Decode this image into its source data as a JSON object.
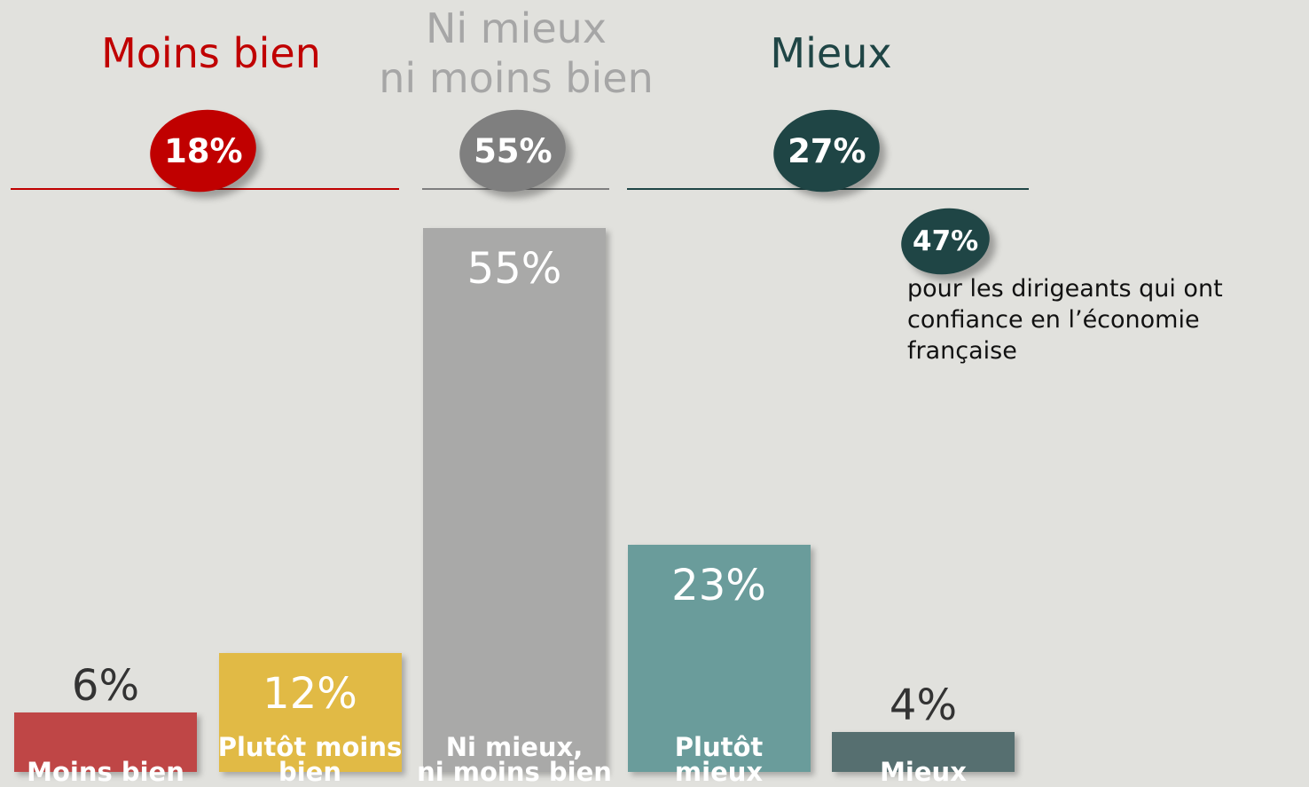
{
  "chart_data": {
    "type": "bar",
    "categories": [
      "Moins bien",
      "Plutôt moins\nbien",
      "Ni mieux,\nni moins bien",
      "Plutôt\nmieux",
      "Mieux"
    ],
    "values": [
      6,
      12,
      55,
      23,
      4
    ],
    "value_labels": [
      "6%",
      "12%",
      "55%",
      "23%",
      "4%"
    ],
    "colors": [
      "#bf4646",
      "#e1ba45",
      "#a9a9a8",
      "#6a9c9b",
      "#566f70"
    ],
    "groups": [
      {
        "title": "Moins bien",
        "value": 18,
        "value_label": "18%",
        "color": "#c00000",
        "title_color": "#c00000"
      },
      {
        "title": "Ni mieux\nni moins bien",
        "value": 55,
        "value_label": "55%",
        "color": "#7f7f7f",
        "title_color": "#a6a6a6"
      },
      {
        "title": "Mieux",
        "value": 27,
        "value_label": "27%",
        "color": "#1f4545",
        "title_color": "#1f4545"
      }
    ],
    "annotation": {
      "value": 47,
      "value_label": "47%",
      "text": "pour les dirigeants qui ont\nconfiance en l’économie française",
      "color": "#1f4545"
    }
  }
}
